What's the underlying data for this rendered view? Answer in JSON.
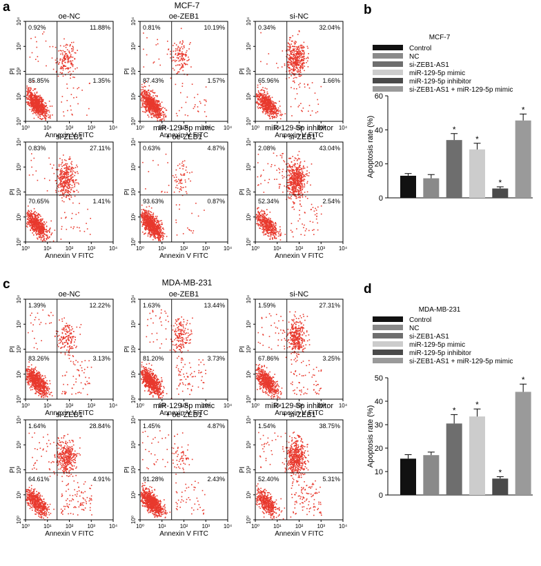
{
  "colors": {
    "dot": "#e8392d",
    "axis": "#000000",
    "bars": [
      "#111111",
      "#8a8a8a",
      "#6e6e6e",
      "#cccccc",
      "#4a4a4a",
      "#9a9a9a"
    ]
  },
  "panel_letters": [
    "a",
    "b",
    "c",
    "d"
  ],
  "flow_sections": [
    {
      "title": "MCF-7",
      "xlabel": "Annexin V FITC",
      "ylabel": "PI",
      "plots": [
        {
          "title_lines": [
            "oe-NC"
          ],
          "q_ul": "0.92%",
          "q_ur": "11.88%",
          "q_ll": "85.85%",
          "q_lr": "1.35%"
        },
        {
          "title_lines": [
            "oe-ZEB1"
          ],
          "q_ul": "0.81%",
          "q_ur": "10.19%",
          "q_ll": "87.43%",
          "q_lr": "1.57%"
        },
        {
          "title_lines": [
            "si-NC"
          ],
          "q_ul": "0.34%",
          "q_ur": "32.04%",
          "q_ll": "65.96%",
          "q_lr": "1.66%"
        },
        {
          "title_lines": [
            "si-ZEB1"
          ],
          "q_ul": "0.83%",
          "q_ur": "27.11%",
          "q_ll": "70.65%",
          "q_lr": "1.41%"
        },
        {
          "title_lines": [
            "miR-129-5p mimic",
            "+ oe-ZEB1"
          ],
          "q_ul": "0.63%",
          "q_ur": "4.87%",
          "q_ll": "93.63%",
          "q_lr": "0.87%"
        },
        {
          "title_lines": [
            "miR-129-5p inhibitor",
            "+ si-ZEB1"
          ],
          "q_ul": "2.08%",
          "q_ur": "43.04%",
          "q_ll": "52.34%",
          "q_lr": "2.54%"
        }
      ]
    },
    {
      "title": "MDA-MB-231",
      "xlabel": "Annexin V FITC",
      "ylabel": "PI",
      "plots": [
        {
          "title_lines": [
            "oe-NC"
          ],
          "q_ul": "1.39%",
          "q_ur": "12.22%",
          "q_ll": "83.26%",
          "q_lr": "3.13%"
        },
        {
          "title_lines": [
            "oe-ZEB1"
          ],
          "q_ul": "1.63%",
          "q_ur": "13.44%",
          "q_ll": "81.20%",
          "q_lr": "3.73%"
        },
        {
          "title_lines": [
            "si-NC"
          ],
          "q_ul": "1.59%",
          "q_ur": "27.31%",
          "q_ll": "67.86%",
          "q_lr": "3.25%"
        },
        {
          "title_lines": [
            "si-ZEB1"
          ],
          "q_ul": "1.64%",
          "q_ur": "28.84%",
          "q_ll": "64.61%",
          "q_lr": "4.91%"
        },
        {
          "title_lines": [
            "miR-129-5p mimic",
            "+ oe-ZEB1"
          ],
          "q_ul": "1.45%",
          "q_ur": "4.87%",
          "q_ll": "91.28%",
          "q_lr": "2.43%"
        },
        {
          "title_lines": [
            "miR-129-5p inhibitor",
            "+ si-ZEB1"
          ],
          "q_ul": "1.54%",
          "q_ur": "38.75%",
          "q_ll": "52.40%",
          "q_lr": "5.31%"
        }
      ]
    }
  ],
  "flow_axis_ticks": [
    "10⁰",
    "10¹",
    "10²",
    "10³",
    "10⁴"
  ],
  "chart_data": [
    {
      "type": "bar",
      "title": "MCF-7",
      "ylabel": "Apoptosis rate (%)",
      "xlabel": "",
      "ylim": [
        0,
        60
      ],
      "yticks": [
        0,
        20,
        40,
        60
      ],
      "categories": [
        "Control",
        "NC",
        "si-ZEB1-AS1",
        "miR-129-5p mimic",
        "miR-129-5p inhibitor",
        "si-ZEB1-AS1 + miR-129-5p mimic"
      ],
      "values": [
        13,
        11.5,
        34,
        28.5,
        5.5,
        45.5
      ],
      "errors": [
        1.3,
        2.2,
        3.8,
        3.6,
        1.0,
        3.8
      ],
      "significant": [
        false,
        false,
        true,
        true,
        true,
        true
      ],
      "sig_marker": "*",
      "legend": "top"
    },
    {
      "type": "bar",
      "title": "MDA-MB-231",
      "ylabel": "Apoptosis rate (%)",
      "xlabel": "",
      "ylim": [
        0,
        50
      ],
      "yticks": [
        0,
        10,
        20,
        30,
        40,
        50
      ],
      "categories": [
        "Control",
        "NC",
        "si-ZEB1-AS1",
        "miR-129-5p mimic",
        "miR-129-5p inhibitor",
        "si-ZEB1-AS1 + miR-129-5p mimic"
      ],
      "values": [
        15.5,
        17,
        30.5,
        33.5,
        7,
        44
      ],
      "errors": [
        1.7,
        1.3,
        3.8,
        3.2,
        0.8,
        3.3
      ],
      "significant": [
        false,
        false,
        true,
        true,
        true,
        true
      ],
      "sig_marker": "*",
      "legend": "top"
    }
  ]
}
